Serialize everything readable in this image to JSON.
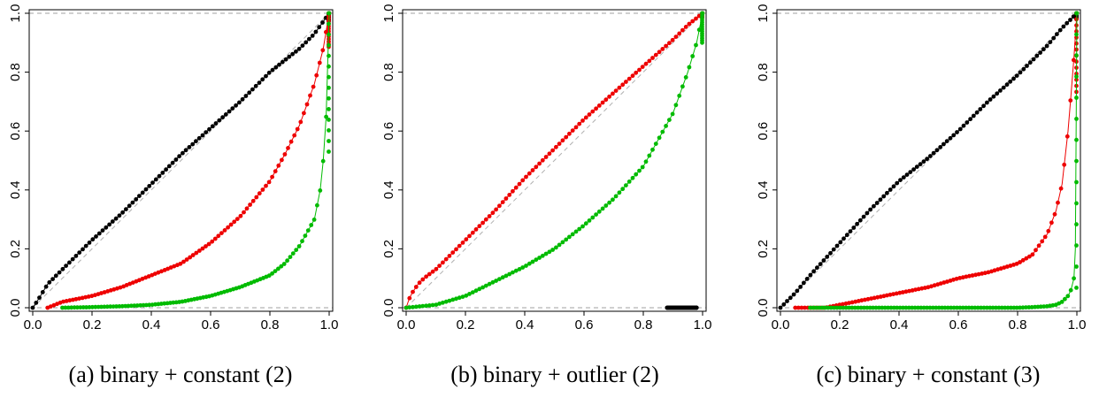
{
  "figure": {
    "captions": [
      "(a) binary + constant (2)",
      "(b) binary + outlier (2)",
      "(c) binary + constant (3)"
    ]
  },
  "chart_data": [
    {
      "type": "scatter",
      "caption": "(a) binary + constant (2)",
      "xlim": [
        0,
        1
      ],
      "ylim": [
        0,
        1
      ],
      "xticks": [
        "0.0",
        "0.2",
        "0.4",
        "0.6",
        "0.8",
        "1.0"
      ],
      "yticks": [
        "0.0",
        "0.2",
        "0.4",
        "0.6",
        "0.8",
        "1.0"
      ],
      "reference_lines": {
        "y": [
          0,
          1
        ],
        "diagonal": true,
        "style": "dashed gray"
      },
      "colors": {
        "black": "#000000",
        "red": "#ee0000",
        "green": "#00bb00"
      },
      "series": [
        {
          "color": "black",
          "curve": {
            "x": [
              0,
              0.02,
              0.05,
              0.1,
              0.2,
              0.3,
              0.4,
              0.5,
              0.6,
              0.7,
              0.8,
              0.9,
              0.95,
              1.0
            ],
            "y": [
              0,
              0.03,
              0.08,
              0.13,
              0.23,
              0.32,
              0.42,
              0.52,
              0.61,
              0.7,
              0.8,
              0.88,
              0.93,
              1.0
            ]
          }
        },
        {
          "color": "red",
          "curve": {
            "x": [
              0.05,
              0.1,
              0.15,
              0.2,
              0.3,
              0.4,
              0.5,
              0.6,
              0.7,
              0.8,
              0.85,
              0.9,
              0.95,
              0.98,
              1.0
            ],
            "y": [
              0,
              0.02,
              0.03,
              0.04,
              0.07,
              0.11,
              0.15,
              0.22,
              0.31,
              0.43,
              0.52,
              0.62,
              0.76,
              0.88,
              1.0
            ]
          }
        },
        {
          "color": "green",
          "curve": {
            "x": [
              0.1,
              0.2,
              0.3,
              0.4,
              0.5,
              0.6,
              0.7,
              0.8,
              0.85,
              0.9,
              0.95,
              0.97,
              0.98,
              0.99,
              1.0
            ],
            "y": [
              0,
              0.002,
              0.005,
              0.01,
              0.02,
              0.04,
              0.07,
              0.11,
              0.15,
              0.21,
              0.3,
              0.4,
              0.5,
              0.65,
              1.0
            ]
          }
        }
      ]
    },
    {
      "type": "scatter",
      "caption": "(b) binary + outlier (2)",
      "xlim": [
        0,
        1
      ],
      "ylim": [
        0,
        1
      ],
      "xticks": [
        "0.0",
        "0.2",
        "0.4",
        "0.6",
        "0.8",
        "1.0"
      ],
      "yticks": [
        "0.0",
        "0.2",
        "0.4",
        "0.6",
        "0.8",
        "1.0"
      ],
      "reference_lines": {
        "y": [
          0,
          1
        ],
        "diagonal": true,
        "style": "dashed gray"
      },
      "colors": {
        "black": "#000000",
        "red": "#ee0000",
        "green": "#00bb00"
      },
      "series": [
        {
          "color": "black",
          "curve": {
            "x": [
              0.88,
              0.9,
              0.92,
              0.94,
              0.96,
              0.98
            ],
            "y": [
              0,
              0,
              0,
              0,
              0,
              0
            ]
          }
        },
        {
          "color": "red",
          "curve": {
            "x": [
              0,
              0.01,
              0.02,
              0.04,
              0.06,
              0.1,
              0.15,
              0.2,
              0.3,
              0.4,
              0.5,
              0.6,
              0.7,
              0.8,
              0.9,
              0.95,
              1.0
            ],
            "y": [
              0,
              0.03,
              0.05,
              0.08,
              0.1,
              0.13,
              0.18,
              0.23,
              0.33,
              0.44,
              0.54,
              0.64,
              0.73,
              0.82,
              0.91,
              0.96,
              1.0
            ]
          }
        },
        {
          "color": "green",
          "curve": {
            "x": [
              0,
              0.05,
              0.1,
              0.2,
              0.3,
              0.4,
              0.5,
              0.6,
              0.7,
              0.8,
              0.9,
              0.95,
              0.98,
              1.0
            ],
            "y": [
              0,
              0.005,
              0.01,
              0.04,
              0.09,
              0.14,
              0.2,
              0.28,
              0.37,
              0.48,
              0.66,
              0.8,
              0.9,
              1.0
            ]
          }
        }
      ]
    },
    {
      "type": "scatter",
      "caption": "(c) binary + constant (3)",
      "xlim": [
        0,
        1
      ],
      "ylim": [
        0,
        1
      ],
      "xticks": [
        "0.0",
        "0.2",
        "0.4",
        "0.6",
        "0.8",
        "1.0"
      ],
      "yticks": [
        "0.0",
        "0.2",
        "0.4",
        "0.6",
        "0.8",
        "1.0"
      ],
      "reference_lines": {
        "y": [
          0,
          1
        ],
        "diagonal": true,
        "style": "dashed gray"
      },
      "colors": {
        "black": "#000000",
        "red": "#ee0000",
        "green": "#00bb00"
      },
      "series": [
        {
          "color": "black",
          "curve": {
            "x": [
              0,
              0.02,
              0.05,
              0.1,
              0.2,
              0.3,
              0.4,
              0.5,
              0.6,
              0.7,
              0.8,
              0.9,
              0.95,
              1.0
            ],
            "y": [
              0,
              0.02,
              0.05,
              0.11,
              0.22,
              0.33,
              0.43,
              0.51,
              0.6,
              0.7,
              0.79,
              0.89,
              0.95,
              1.0
            ]
          }
        },
        {
          "color": "red",
          "curve": {
            "x": [
              0.05,
              0.15,
              0.2,
              0.3,
              0.4,
              0.5,
              0.6,
              0.7,
              0.8,
              0.85,
              0.9,
              0.93,
              0.95,
              0.97,
              0.98,
              0.99,
              1.0
            ],
            "y": [
              0,
              0,
              0.01,
              0.03,
              0.05,
              0.07,
              0.1,
              0.12,
              0.15,
              0.18,
              0.25,
              0.33,
              0.42,
              0.6,
              0.72,
              0.85,
              1.0
            ]
          }
        },
        {
          "color": "green",
          "curve": {
            "x": [
              0.1,
              0.3,
              0.5,
              0.7,
              0.8,
              0.85,
              0.9,
              0.93,
              0.95,
              0.97,
              0.98,
              0.99,
              0.995,
              1.0
            ],
            "y": [
              0,
              0,
              0,
              0,
              0,
              0.002,
              0.005,
              0.01,
              0.02,
              0.04,
              0.06,
              0.1,
              0.2,
              1.0
            ]
          }
        }
      ]
    }
  ]
}
